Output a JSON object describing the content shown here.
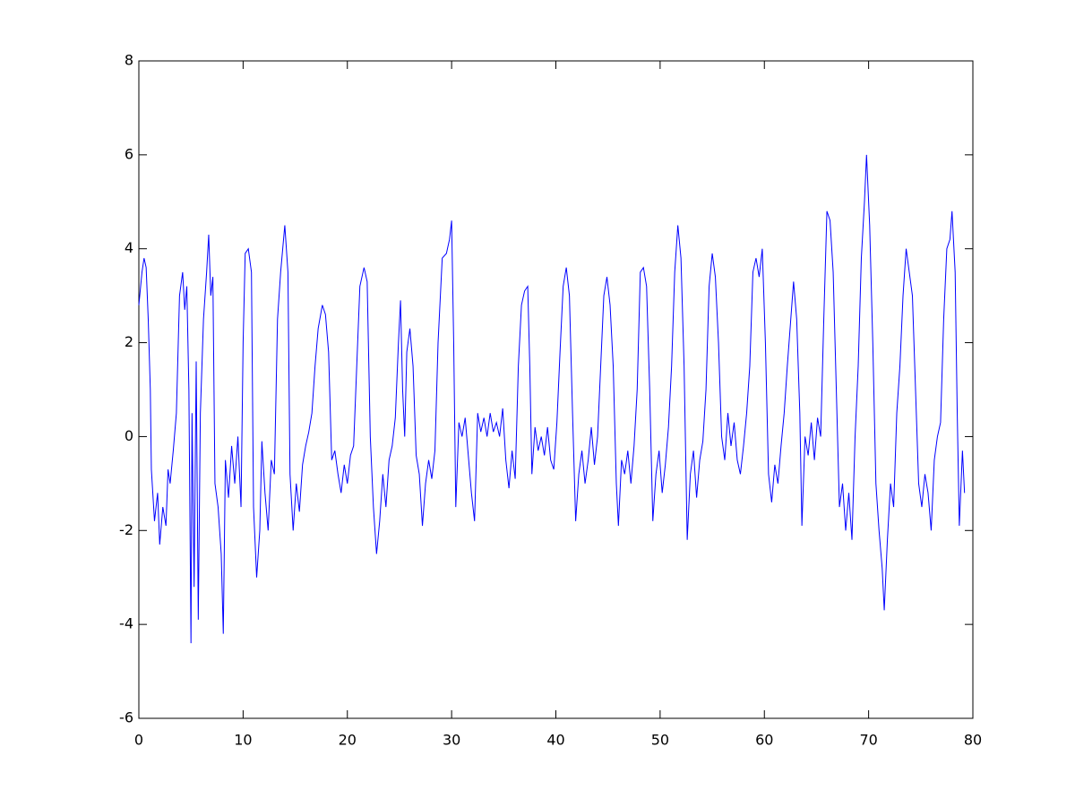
{
  "chart_data": {
    "type": "line",
    "color": "#0000ff",
    "xlim": [
      0,
      80
    ],
    "ylim": [
      -6,
      8
    ],
    "xticks": [
      0,
      10,
      20,
      30,
      40,
      50,
      60,
      70,
      80
    ],
    "yticks": [
      -6,
      -4,
      -2,
      0,
      2,
      4,
      6,
      8
    ],
    "x": [
      0,
      0.3,
      0.5,
      0.7,
      0.9,
      1.1,
      1.2,
      1.5,
      1.8,
      2.0,
      2.3,
      2.6,
      2.8,
      3.0,
      3.3,
      3.6,
      3.9,
      4.2,
      4.4,
      4.6,
      4.8,
      5.0,
      5.1,
      5.3,
      5.5,
      5.7,
      5.9,
      6.2,
      6.5,
      6.7,
      6.9,
      7.1,
      7.3,
      7.6,
      7.9,
      8.1,
      8.3,
      8.6,
      8.9,
      9.2,
      9.5,
      9.8,
      10.0,
      10.2,
      10.5,
      10.8,
      11.0,
      11.3,
      11.6,
      11.8,
      12.1,
      12.4,
      12.7,
      13.0,
      13.3,
      13.6,
      14.0,
      14.3,
      14.5,
      14.8,
      15.1,
      15.4,
      15.7,
      16.0,
      16.3,
      16.6,
      16.9,
      17.2,
      17.6,
      17.9,
      18.2,
      18.5,
      18.8,
      19.1,
      19.4,
      19.7,
      20.0,
      20.3,
      20.6,
      20.9,
      21.2,
      21.6,
      21.9,
      22.2,
      22.5,
      22.8,
      23.1,
      23.4,
      23.7,
      24.0,
      24.3,
      24.6,
      24.9,
      25.1,
      25.3,
      25.5,
      25.7,
      26.0,
      26.3,
      26.6,
      26.9,
      27.2,
      27.5,
      27.8,
      28.1,
      28.4,
      28.7,
      29.1,
      29.5,
      29.8,
      30.0,
      30.2,
      30.4,
      30.7,
      31.0,
      31.3,
      31.6,
      31.9,
      32.2,
      32.5,
      32.8,
      33.1,
      33.4,
      33.7,
      34.0,
      34.3,
      34.6,
      34.9,
      35.2,
      35.5,
      35.8,
      36.1,
      36.4,
      36.7,
      37.0,
      37.3,
      37.5,
      37.7,
      38.0,
      38.3,
      38.6,
      38.9,
      39.2,
      39.5,
      39.8,
      40.1,
      40.4,
      40.7,
      41.0,
      41.3,
      41.6,
      41.9,
      42.2,
      42.5,
      42.8,
      43.1,
      43.4,
      43.7,
      44.0,
      44.3,
      44.6,
      44.9,
      45.2,
      45.5,
      45.8,
      46.0,
      46.3,
      46.6,
      46.9,
      47.2,
      47.5,
      47.8,
      48.1,
      48.4,
      48.7,
      49.0,
      49.3,
      49.6,
      49.9,
      50.2,
      50.5,
      50.8,
      51.1,
      51.4,
      51.7,
      52.0,
      52.3,
      52.6,
      52.9,
      53.2,
      53.5,
      53.8,
      54.1,
      54.4,
      54.7,
      55.0,
      55.3,
      55.6,
      55.9,
      56.2,
      56.5,
      56.8,
      57.1,
      57.4,
      57.7,
      58.0,
      58.3,
      58.6,
      58.9,
      59.2,
      59.5,
      59.8,
      60.1,
      60.4,
      60.7,
      61.0,
      61.3,
      61.6,
      61.9,
      62.2,
      62.5,
      62.8,
      63.1,
      63.4,
      63.6,
      63.9,
      64.2,
      64.5,
      64.8,
      65.1,
      65.4,
      65.7,
      66.0,
      66.3,
      66.6,
      66.9,
      67.2,
      67.5,
      67.8,
      68.1,
      68.4,
      68.7,
      69.0,
      69.3,
      69.6,
      69.8,
      70.1,
      70.4,
      70.7,
      71.0,
      71.3,
      71.5,
      71.8,
      72.1,
      72.4,
      72.7,
      73.0,
      73.3,
      73.6,
      73.9,
      74.2,
      74.5,
      74.8,
      75.1,
      75.4,
      75.7,
      76.0,
      76.3,
      76.6,
      76.9,
      77.2,
      77.5,
      77.8,
      78.0,
      78.3,
      78.5,
      78.7,
      79.0,
      79.2
    ],
    "values": [
      2.8,
      3.5,
      3.8,
      3.6,
      2.5,
      1.0,
      -0.7,
      -1.8,
      -1.2,
      -2.3,
      -1.5,
      -1.9,
      -0.7,
      -1.0,
      -0.3,
      0.5,
      3.0,
      3.5,
      2.7,
      3.2,
      1.0,
      -4.4,
      0.5,
      -3.2,
      1.6,
      -3.9,
      0.5,
      2.5,
      3.5,
      4.3,
      3.0,
      3.4,
      -1.0,
      -1.5,
      -2.5,
      -4.2,
      -0.5,
      -1.3,
      -0.2,
      -1.0,
      0.0,
      -1.5,
      2.0,
      3.9,
      4.0,
      3.5,
      -1.5,
      -3.0,
      -2.0,
      -0.1,
      -1.2,
      -2.0,
      -0.5,
      -0.8,
      2.5,
      3.5,
      4.5,
      3.5,
      -0.8,
      -2.0,
      -1.0,
      -1.6,
      -0.6,
      -0.2,
      0.1,
      0.5,
      1.5,
      2.3,
      2.8,
      2.6,
      1.8,
      -0.5,
      -0.3,
      -0.8,
      -1.2,
      -0.6,
      -1.0,
      -0.4,
      -0.2,
      1.5,
      3.2,
      3.6,
      3.3,
      0.0,
      -1.5,
      -2.5,
      -1.8,
      -0.8,
      -1.5,
      -0.5,
      -0.2,
      0.4,
      2.0,
      2.9,
      1.0,
      0.0,
      1.8,
      2.3,
      1.5,
      -0.4,
      -0.8,
      -1.9,
      -1.0,
      -0.5,
      -0.9,
      -0.3,
      2.0,
      3.8,
      3.9,
      4.2,
      4.6,
      2.0,
      -1.5,
      0.3,
      0.0,
      0.4,
      -0.4,
      -1.2,
      -1.8,
      0.5,
      0.1,
      0.4,
      0.0,
      0.5,
      0.1,
      0.3,
      0.0,
      0.6,
      -0.5,
      -1.1,
      -0.3,
      -0.9,
      1.5,
      2.8,
      3.1,
      3.2,
      1.5,
      -0.8,
      0.2,
      -0.3,
      0.0,
      -0.4,
      0.2,
      -0.5,
      -0.7,
      0.3,
      1.8,
      3.2,
      3.6,
      3.0,
      0.5,
      -1.8,
      -0.8,
      -0.3,
      -1.0,
      -0.5,
      0.2,
      -0.6,
      0.0,
      1.5,
      3.0,
      3.4,
      2.8,
      1.5,
      -1.0,
      -1.9,
      -0.5,
      -0.8,
      -0.3,
      -1.0,
      -0.2,
      1.0,
      3.5,
      3.6,
      3.2,
      1.0,
      -1.8,
      -0.8,
      -0.3,
      -1.2,
      -0.6,
      0.2,
      1.5,
      3.5,
      4.5,
      3.8,
      1.5,
      -2.2,
      -0.8,
      -0.3,
      -1.3,
      -0.5,
      -0.1,
      1.0,
      3.2,
      3.9,
      3.4,
      2.0,
      0.0,
      -0.5,
      0.5,
      -0.2,
      0.3,
      -0.5,
      -0.8,
      -0.2,
      0.5,
      1.5,
      3.5,
      3.8,
      3.4,
      4.0,
      2.0,
      -0.8,
      -1.4,
      -0.6,
      -1.0,
      -0.2,
      0.5,
      1.5,
      2.4,
      3.3,
      2.5,
      0.5,
      -1.9,
      0.0,
      -0.4,
      0.3,
      -0.5,
      0.4,
      0.0,
      2.5,
      4.8,
      4.6,
      3.5,
      1.0,
      -1.5,
      -1.0,
      -2.0,
      -1.2,
      -2.2,
      0.0,
      1.5,
      3.8,
      5.0,
      6.0,
      4.5,
      2.0,
      -1.0,
      -2.0,
      -2.8,
      -3.7,
      -2.2,
      -1.0,
      -1.5,
      0.5,
      1.5,
      3.0,
      4.0,
      3.5,
      3.0,
      1.0,
      -1.0,
      -1.5,
      -0.8,
      -1.2,
      -2.0,
      -0.5,
      0.0,
      0.3,
      2.5,
      4.0,
      4.2,
      4.8,
      3.5,
      0.5,
      -1.9,
      -0.3,
      -1.2
    ]
  }
}
